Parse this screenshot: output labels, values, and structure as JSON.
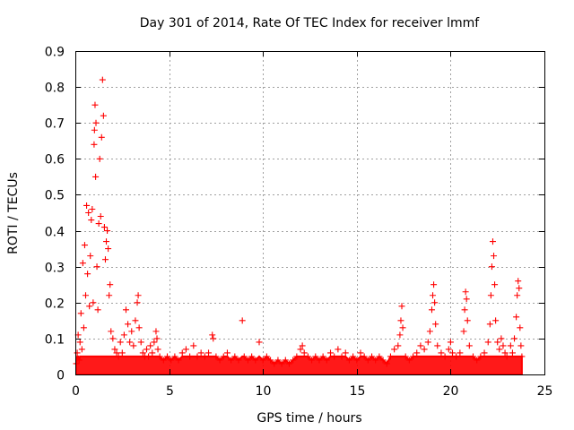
{
  "chart_data": {
    "type": "scatter",
    "title": "Day 301 of 2014, Rate Of TEC Index for receiver lmmf",
    "xlabel": "GPS time / hours",
    "ylabel": "ROTI / TECUs",
    "xlim": [
      0,
      25
    ],
    "ylim": [
      0,
      0.9
    ],
    "xticks": [
      0,
      5,
      10,
      15,
      20,
      25
    ],
    "xtick_labels": [
      "0",
      "5",
      "10",
      "15",
      "20",
      "25"
    ],
    "yticks": [
      0,
      0.1,
      0.2,
      0.3,
      0.4,
      0.5,
      0.6,
      0.7,
      0.8,
      0.9
    ],
    "ytick_labels": [
      "0",
      "0.1",
      "0.2",
      "0.3",
      "0.4",
      "0.5",
      "0.6",
      "0.7",
      "0.8",
      "0.9"
    ],
    "grid": true,
    "marker": "+",
    "color": "#ff0000",
    "series": [
      {
        "name": "ROTI",
        "points": [
          [
            0.05,
            0.03
          ],
          [
            0.1,
            0.06
          ],
          [
            0.15,
            0.11
          ],
          [
            0.2,
            0.04
          ],
          [
            0.25,
            0.09
          ],
          [
            0.3,
            0.17
          ],
          [
            0.35,
            0.07
          ],
          [
            0.4,
            0.31
          ],
          [
            0.45,
            0.13
          ],
          [
            0.5,
            0.36
          ],
          [
            0.55,
            0.22
          ],
          [
            0.6,
            0.47
          ],
          [
            0.65,
            0.28
          ],
          [
            0.7,
            0.45
          ],
          [
            0.75,
            0.19
          ],
          [
            0.8,
            0.33
          ],
          [
            0.85,
            0.43
          ],
          [
            0.9,
            0.46
          ],
          [
            0.95,
            0.2
          ],
          [
            1.0,
            0.64
          ],
          [
            1.02,
            0.68
          ],
          [
            1.05,
            0.75
          ],
          [
            1.08,
            0.55
          ],
          [
            1.1,
            0.7
          ],
          [
            1.15,
            0.3
          ],
          [
            1.2,
            0.18
          ],
          [
            1.25,
            0.42
          ],
          [
            1.3,
            0.6
          ],
          [
            1.35,
            0.44
          ],
          [
            1.4,
            0.66
          ],
          [
            1.45,
            0.82
          ],
          [
            1.5,
            0.72
          ],
          [
            1.55,
            0.41
          ],
          [
            1.6,
            0.32
          ],
          [
            1.65,
            0.37
          ],
          [
            1.7,
            0.4
          ],
          [
            1.75,
            0.35
          ],
          [
            1.8,
            0.22
          ],
          [
            1.85,
            0.25
          ],
          [
            1.9,
            0.12
          ],
          [
            2.0,
            0.1
          ],
          [
            2.1,
            0.07
          ],
          [
            2.2,
            0.06
          ],
          [
            2.3,
            0.05
          ],
          [
            2.4,
            0.09
          ],
          [
            2.5,
            0.06
          ],
          [
            2.6,
            0.11
          ],
          [
            2.7,
            0.18
          ],
          [
            2.8,
            0.14
          ],
          [
            2.9,
            0.09
          ],
          [
            3.0,
            0.12
          ],
          [
            3.1,
            0.08
          ],
          [
            3.2,
            0.15
          ],
          [
            3.3,
            0.2
          ],
          [
            3.35,
            0.22
          ],
          [
            3.4,
            0.13
          ],
          [
            3.5,
            0.09
          ],
          [
            3.6,
            0.06
          ],
          [
            3.7,
            0.05
          ],
          [
            3.8,
            0.07
          ],
          [
            3.9,
            0.05
          ],
          [
            4.0,
            0.08
          ],
          [
            4.1,
            0.06
          ],
          [
            4.2,
            0.09
          ],
          [
            4.3,
            0.12
          ],
          [
            4.35,
            0.1
          ],
          [
            4.4,
            0.07
          ],
          [
            4.5,
            0.05
          ],
          [
            4.7,
            0.04
          ],
          [
            4.9,
            0.05
          ],
          [
            5.1,
            0.04
          ],
          [
            5.3,
            0.05
          ],
          [
            5.5,
            0.04
          ],
          [
            5.7,
            0.06
          ],
          [
            5.9,
            0.07
          ],
          [
            6.1,
            0.05
          ],
          [
            6.3,
            0.08
          ],
          [
            6.5,
            0.05
          ],
          [
            6.7,
            0.06
          ],
          [
            6.9,
            0.05
          ],
          [
            7.1,
            0.06
          ],
          [
            7.3,
            0.11
          ],
          [
            7.35,
            0.1
          ],
          [
            7.5,
            0.05
          ],
          [
            7.7,
            0.04
          ],
          [
            7.9,
            0.05
          ],
          [
            8.1,
            0.06
          ],
          [
            8.3,
            0.04
          ],
          [
            8.5,
            0.05
          ],
          [
            8.7,
            0.04
          ],
          [
            8.9,
            0.15
          ],
          [
            9.0,
            0.05
          ],
          [
            9.2,
            0.04
          ],
          [
            9.4,
            0.05
          ],
          [
            9.6,
            0.04
          ],
          [
            9.8,
            0.09
          ],
          [
            10.0,
            0.04
          ],
          [
            10.2,
            0.05
          ],
          [
            10.4,
            0.04
          ],
          [
            10.6,
            0.03
          ],
          [
            10.8,
            0.04
          ],
          [
            11.0,
            0.03
          ],
          [
            11.2,
            0.04
          ],
          [
            11.4,
            0.03
          ],
          [
            11.6,
            0.04
          ],
          [
            11.8,
            0.05
          ],
          [
            12.0,
            0.07
          ],
          [
            12.1,
            0.08
          ],
          [
            12.2,
            0.06
          ],
          [
            12.4,
            0.05
          ],
          [
            12.6,
            0.04
          ],
          [
            12.8,
            0.05
          ],
          [
            13.0,
            0.04
          ],
          [
            13.2,
            0.05
          ],
          [
            13.4,
            0.04
          ],
          [
            13.6,
            0.06
          ],
          [
            13.8,
            0.05
          ],
          [
            14.0,
            0.07
          ],
          [
            14.2,
            0.05
          ],
          [
            14.4,
            0.06
          ],
          [
            14.6,
            0.04
          ],
          [
            14.8,
            0.05
          ],
          [
            15.0,
            0.04
          ],
          [
            15.2,
            0.06
          ],
          [
            15.4,
            0.05
          ],
          [
            15.6,
            0.04
          ],
          [
            15.8,
            0.05
          ],
          [
            16.0,
            0.04
          ],
          [
            16.2,
            0.05
          ],
          [
            16.4,
            0.04
          ],
          [
            16.6,
            0.03
          ],
          [
            16.8,
            0.05
          ],
          [
            17.0,
            0.07
          ],
          [
            17.2,
            0.08
          ],
          [
            17.3,
            0.11
          ],
          [
            17.35,
            0.15
          ],
          [
            17.4,
            0.19
          ],
          [
            17.45,
            0.13
          ],
          [
            17.6,
            0.05
          ],
          [
            17.8,
            0.04
          ],
          [
            18.0,
            0.05
          ],
          [
            18.2,
            0.06
          ],
          [
            18.4,
            0.08
          ],
          [
            18.6,
            0.07
          ],
          [
            18.8,
            0.09
          ],
          [
            18.9,
            0.12
          ],
          [
            19.0,
            0.18
          ],
          [
            19.05,
            0.22
          ],
          [
            19.1,
            0.25
          ],
          [
            19.15,
            0.2
          ],
          [
            19.2,
            0.14
          ],
          [
            19.3,
            0.08
          ],
          [
            19.5,
            0.06
          ],
          [
            19.7,
            0.05
          ],
          [
            19.9,
            0.07
          ],
          [
            20.0,
            0.09
          ],
          [
            20.1,
            0.06
          ],
          [
            20.3,
            0.05
          ],
          [
            20.5,
            0.06
          ],
          [
            20.7,
            0.12
          ],
          [
            20.75,
            0.18
          ],
          [
            20.8,
            0.23
          ],
          [
            20.85,
            0.21
          ],
          [
            20.9,
            0.15
          ],
          [
            21.0,
            0.08
          ],
          [
            21.2,
            0.05
          ],
          [
            21.4,
            0.04
          ],
          [
            21.6,
            0.05
          ],
          [
            21.8,
            0.06
          ],
          [
            22.0,
            0.09
          ],
          [
            22.1,
            0.14
          ],
          [
            22.15,
            0.22
          ],
          [
            22.2,
            0.3
          ],
          [
            22.25,
            0.37
          ],
          [
            22.3,
            0.33
          ],
          [
            22.35,
            0.25
          ],
          [
            22.4,
            0.15
          ],
          [
            22.5,
            0.09
          ],
          [
            22.6,
            0.07
          ],
          [
            22.7,
            0.1
          ],
          [
            22.8,
            0.08
          ],
          [
            22.9,
            0.06
          ],
          [
            23.0,
            0.05
          ],
          [
            23.2,
            0.08
          ],
          [
            23.3,
            0.06
          ],
          [
            23.4,
            0.1
          ],
          [
            23.5,
            0.16
          ],
          [
            23.55,
            0.22
          ],
          [
            23.6,
            0.26
          ],
          [
            23.65,
            0.24
          ],
          [
            23.7,
            0.13
          ],
          [
            23.75,
            0.08
          ],
          [
            23.8,
            0.05
          ]
        ]
      }
    ]
  }
}
